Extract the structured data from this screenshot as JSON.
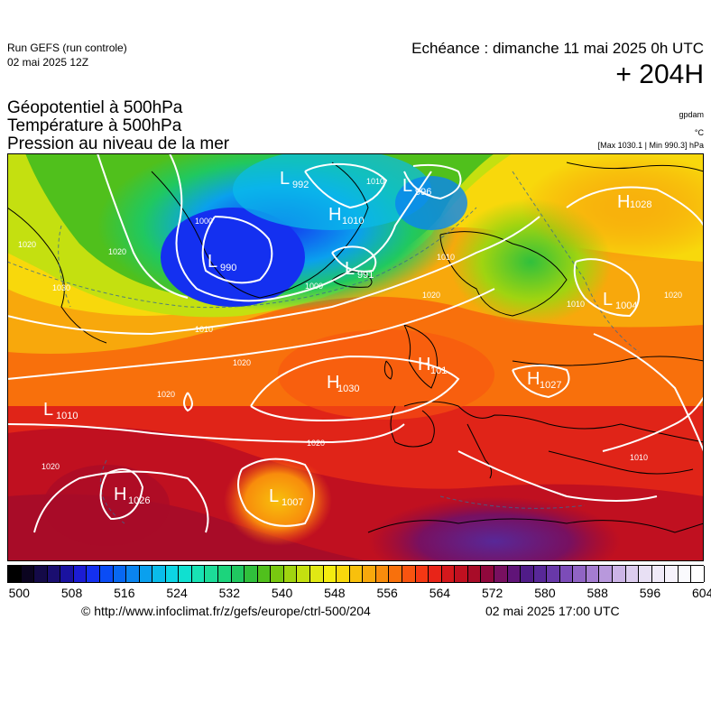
{
  "header": {
    "run_title": "Run GEFS (run controle)",
    "run_date": "02 mai 2025 12Z",
    "echeance": "Echéance : dimanche 11 mai 2025 0h UTC",
    "lead_time": "+ 204H"
  },
  "titles": [
    "Géopotentiel à 500hPa",
    "Température à 500hPa",
    "Pression au niveau de la mer"
  ],
  "units": {
    "geopotential": "gpdam",
    "temperature": "°C",
    "maxmin": "[Max 1030.1 | Min 990.3] hPa"
  },
  "pressure_systems": [
    {
      "type": "L",
      "value": "992"
    },
    {
      "type": "H",
      "value": "1010"
    },
    {
      "type": "L",
      "value": "996"
    },
    {
      "type": "L",
      "value": "990"
    },
    {
      "type": "L",
      "value": "991"
    },
    {
      "type": "H",
      "value": "1030"
    },
    {
      "type": "H",
      "value": "101"
    },
    {
      "type": "H",
      "value": "1027"
    },
    {
      "type": "L",
      "value": "1004"
    },
    {
      "type": "L",
      "value": "1010"
    },
    {
      "type": "H",
      "value": "1026"
    },
    {
      "type": "L",
      "value": "1007"
    },
    {
      "type": "H",
      "value": "1028"
    }
  ],
  "isobar_labels": [
    "1020",
    "1000",
    "1010",
    "1020",
    "1010",
    "1030",
    "1010",
    "1020",
    "1020",
    "1010",
    "1020",
    "1020",
    "1010",
    "1020",
    "1000",
    "1020"
  ],
  "colorbar": {
    "min": 500,
    "max": 606,
    "step": 2,
    "ticks": [
      "500",
      "508",
      "516",
      "524",
      "532",
      "540",
      "548",
      "556",
      "564",
      "572",
      "580",
      "588",
      "596",
      "604"
    ],
    "colors": [
      "#000000",
      "#0b0420",
      "#140a48",
      "#1a0e70",
      "#1a12a0",
      "#1c1cd4",
      "#1430f0",
      "#0a4cf5",
      "#0868f2",
      "#0a84f0",
      "#0aa0ee",
      "#0abcea",
      "#0cd4e4",
      "#10e0d0",
      "#18e2b4",
      "#1cdc98",
      "#1cd47c",
      "#20c860",
      "#30c03c",
      "#50c01c",
      "#78c810",
      "#a0d410",
      "#c4e010",
      "#e0e814",
      "#f4ec10",
      "#f8d80c",
      "#f8c00c",
      "#f8a80c",
      "#f88c0c",
      "#f8700c",
      "#f85410",
      "#f43814",
      "#e82418",
      "#d4181c",
      "#c01020",
      "#a80c28",
      "#90083c",
      "#781060",
      "#601478",
      "#501c88",
      "#582898",
      "#6838a8",
      "#7c4cb8",
      "#9064c4",
      "#a47cd0",
      "#b898dc",
      "#ccb4e6",
      "#dcccee",
      "#e8e0f4",
      "#f0eaf8",
      "#f6f2fb",
      "#fafafd",
      "#ffffff"
    ]
  },
  "footer": {
    "copyright": "© http://www.infoclimat.fr/z/gefs/europe/ctrl-500/204",
    "issued": "02 mai 2025 17:00 UTC"
  }
}
